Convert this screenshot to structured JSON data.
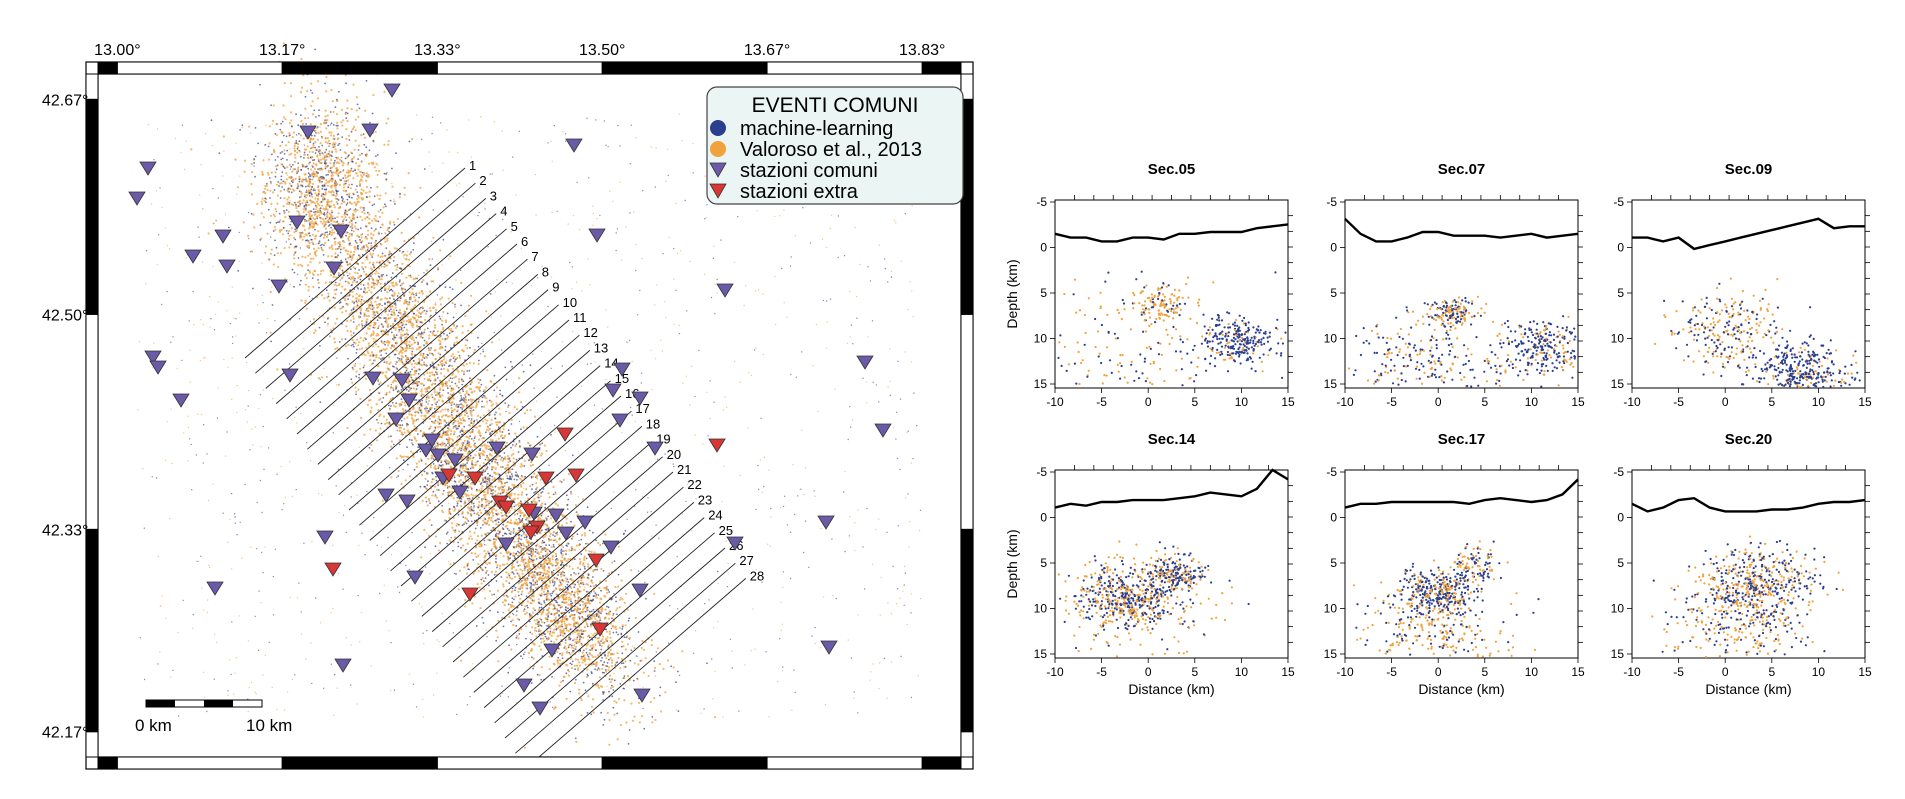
{
  "map": {
    "lon_ticks": [
      "13.00°",
      "13.17°",
      "13.33°",
      "13.50°",
      "13.67°",
      "13.83°"
    ],
    "lat_ticks": [
      "42.67°",
      "42.50°",
      "42.33°",
      "42.17°"
    ],
    "lon_range": [
      12.98,
      13.87
    ],
    "lat_range": [
      42.15,
      42.69
    ],
    "legend": {
      "title": "EVENTI COMUNI",
      "items": [
        {
          "label": "machine-learning",
          "symbol": "circle",
          "color": "#2b3f8f"
        },
        {
          "label": "Valoroso et al., 2013",
          "symbol": "circle",
          "color": "#f0a23c"
        },
        {
          "label": "stazioni comuni",
          "symbol": "triangle-down",
          "color": "#6a5aa8"
        },
        {
          "label": "stazioni extra",
          "symbol": "triangle-down",
          "color": "#d93636"
        }
      ]
    },
    "section_numbers": [
      "1",
      "2",
      "3",
      "4",
      "5",
      "6",
      "7",
      "8",
      "9",
      "10",
      "11",
      "12",
      "13",
      "14",
      "15",
      "16",
      "17",
      "18",
      "19",
      "20",
      "21",
      "22",
      "23",
      "24",
      "25",
      "26",
      "27",
      "28"
    ],
    "scale_bar": {
      "label_start": "0 km",
      "label_end": "10 km"
    },
    "colors": {
      "ml": "#2b3f8f",
      "valoroso": "#f0a23c",
      "station_common": "#6a5aa8",
      "station_extra": "#d93636"
    }
  },
  "sections": {
    "x_axis_label": "Distance (km)",
    "y_axis_label": "Depth (km)",
    "y_ticks": [
      "-5",
      "0",
      "5",
      "10",
      "15"
    ],
    "x_ticks": [
      "-10",
      "-5",
      "0",
      "5",
      "10",
      "15"
    ],
    "panels": [
      {
        "title": "Sec.05"
      },
      {
        "title": "Sec.07"
      },
      {
        "title": "Sec.09"
      },
      {
        "title": "Sec.14"
      },
      {
        "title": "Sec.17"
      },
      {
        "title": "Sec.20"
      }
    ]
  }
}
